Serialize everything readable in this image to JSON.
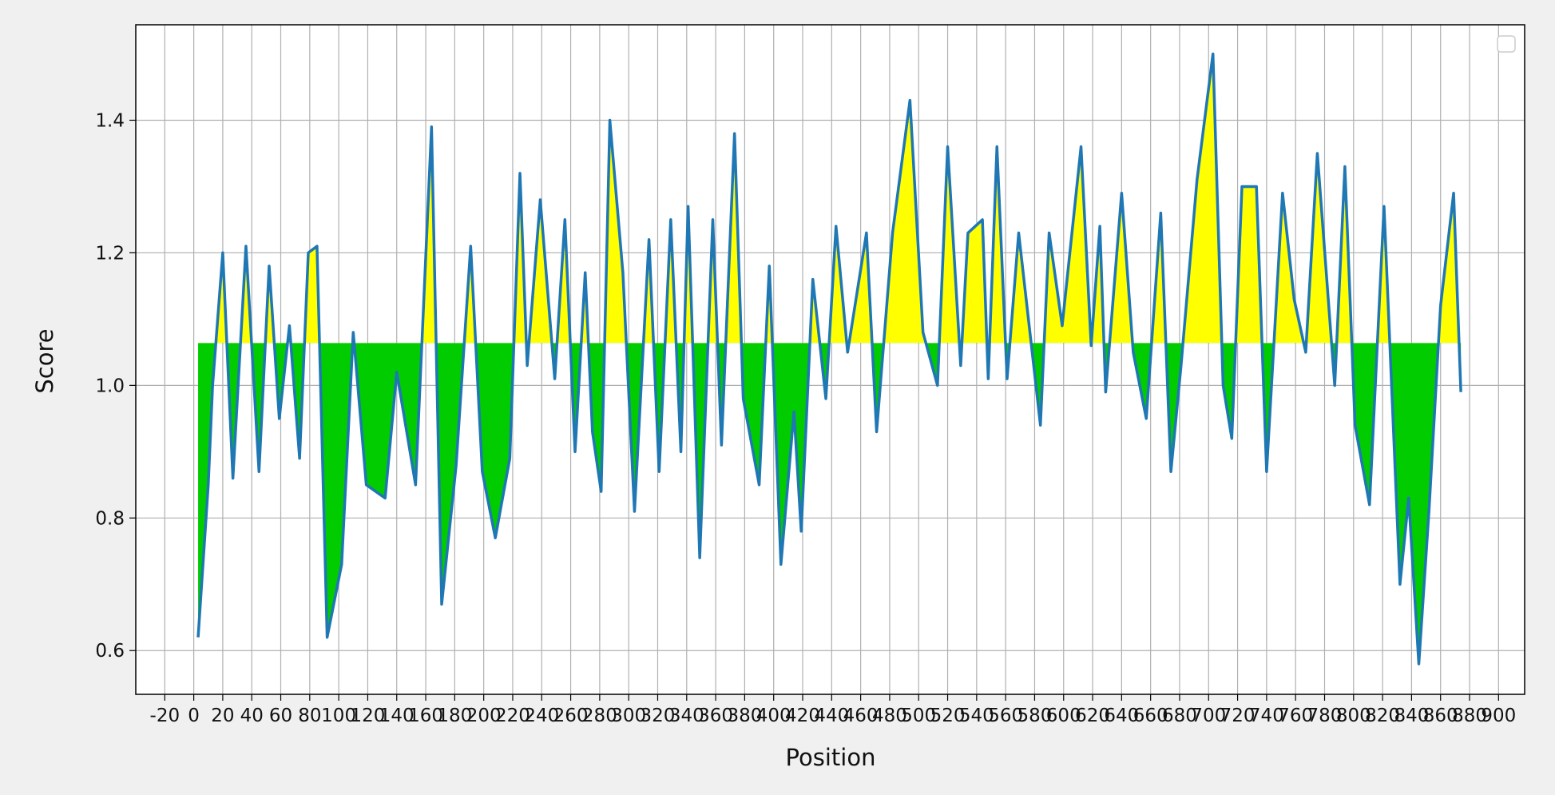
{
  "chart_data": {
    "type": "line",
    "xlabel": "Position",
    "ylabel": "Score",
    "x": [
      3,
      10,
      13,
      20,
      27,
      36,
      45,
      52,
      59,
      66,
      73,
      79,
      85,
      92,
      102,
      110,
      119,
      132,
      140,
      153,
      164,
      171,
      181,
      191,
      199,
      208,
      218,
      225,
      230,
      239,
      249,
      256,
      263,
      270,
      275,
      281,
      287,
      296,
      304,
      314,
      321,
      329,
      336,
      341,
      349,
      358,
      364,
      373,
      379,
      390,
      397,
      405,
      414,
      419,
      427,
      436,
      443,
      451,
      464,
      471,
      482,
      494,
      503,
      513,
      520,
      529,
      534,
      544,
      548,
      554,
      561,
      569,
      584,
      590,
      599,
      612,
      619,
      625,
      629,
      640,
      648,
      657,
      667,
      674,
      681,
      692,
      703,
      710,
      716,
      723,
      733,
      740,
      751,
      759,
      767,
      775,
      787,
      794,
      801,
      811,
      821,
      832,
      838,
      845,
      852,
      860,
      869,
      874
    ],
    "values": [
      0.62,
      0.85,
      1.0,
      1.2,
      0.86,
      1.21,
      0.87,
      1.18,
      0.95,
      1.09,
      0.89,
      1.2,
      1.21,
      0.62,
      0.73,
      1.08,
      0.85,
      0.83,
      1.02,
      0.85,
      1.39,
      0.67,
      0.88,
      1.21,
      0.87,
      0.77,
      0.89,
      1.32,
      1.03,
      1.28,
      1.01,
      1.25,
      0.9,
      1.17,
      0.93,
      0.84,
      1.4,
      1.17,
      0.81,
      1.22,
      0.87,
      1.25,
      0.9,
      1.27,
      0.74,
      1.25,
      0.91,
      1.38,
      0.98,
      0.85,
      1.18,
      0.73,
      0.96,
      0.78,
      1.16,
      0.98,
      1.24,
      1.05,
      1.23,
      0.93,
      1.23,
      1.43,
      1.08,
      1.0,
      1.36,
      1.03,
      1.23,
      1.25,
      1.01,
      1.36,
      1.01,
      1.23,
      0.94,
      1.23,
      1.09,
      1.36,
      1.06,
      1.24,
      0.99,
      1.29,
      1.05,
      0.95,
      1.26,
      0.87,
      1.03,
      1.31,
      1.5,
      1.0,
      0.92,
      1.3,
      1.3,
      0.87,
      1.29,
      1.13,
      1.05,
      1.35,
      1.0,
      1.33,
      0.94,
      0.82,
      1.27,
      0.7,
      0.83,
      0.58,
      0.81,
      1.12,
      1.29,
      0.99
    ],
    "color": "#1f77b4",
    "threshold": 1.064,
    "fill_above_color": "#ffff00",
    "fill_below_color": "#00cc00",
    "xlim": [
      -40,
      918
    ],
    "xticks": [
      -20,
      0,
      20,
      40,
      60,
      80,
      100,
      120,
      140,
      160,
      180,
      200,
      220,
      240,
      260,
      280,
      300,
      320,
      340,
      360,
      380,
      400,
      420,
      440,
      460,
      480,
      500,
      520,
      540,
      560,
      580,
      600,
      620,
      640,
      660,
      680,
      700,
      720,
      740,
      760,
      780,
      800,
      820,
      840,
      860,
      880,
      900
    ],
    "ylim": [
      0.534,
      1.544
    ],
    "yticks": [
      0.6,
      0.8,
      {
        "value": 1,
        "label": "1.0"
      },
      1.2,
      1.4
    ],
    "grid": true
  }
}
